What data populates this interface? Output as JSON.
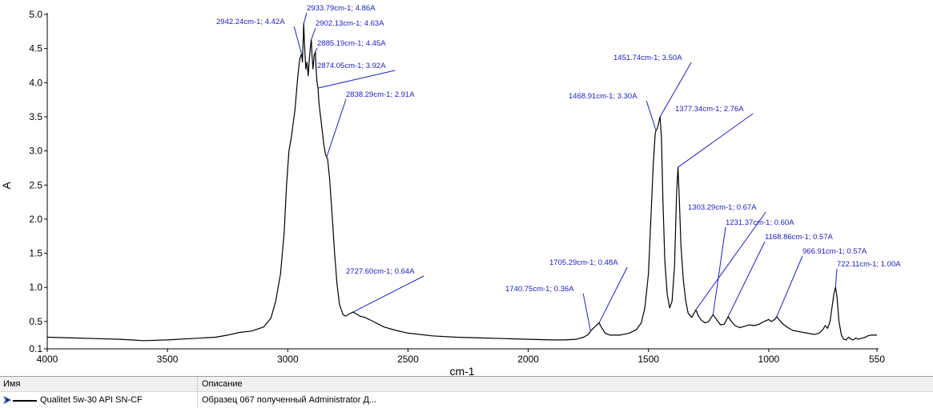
{
  "chart_data": {
    "type": "line",
    "xlabel": "cm-1",
    "ylabel": "A",
    "xlim": [
      4000,
      550
    ],
    "ylim": [
      0.1,
      5.0
    ],
    "x_reversed": true,
    "grid": false,
    "xticks": [
      4000,
      3500,
      3000,
      2500,
      2000,
      1500,
      1000,
      550
    ],
    "xtick_labels": [
      "4000",
      "3500",
      "3000",
      "2500",
      "2000",
      "1500",
      "1000",
      "550"
    ],
    "yticks": [
      0.1,
      0.5,
      1.0,
      1.5,
      2.0,
      2.5,
      3.0,
      3.5,
      4.0,
      4.5,
      5.0
    ],
    "ytick_labels": [
      "0.1",
      "0.5",
      "1.0",
      "1.5",
      "2.0",
      "2.5",
      "3.0",
      "3.5",
      "4.0",
      "4.5",
      "5.0"
    ],
    "series": [
      {
        "name": "Qualitet 5w-30 API SN-CF",
        "color": "#000000",
        "points": [
          [
            4000,
            0.27
          ],
          [
            3900,
            0.26
          ],
          [
            3800,
            0.25
          ],
          [
            3700,
            0.24
          ],
          [
            3650,
            0.23
          ],
          [
            3600,
            0.22
          ],
          [
            3500,
            0.23
          ],
          [
            3400,
            0.25
          ],
          [
            3300,
            0.27
          ],
          [
            3250,
            0.3
          ],
          [
            3200,
            0.34
          ],
          [
            3150,
            0.36
          ],
          [
            3100,
            0.42
          ],
          [
            3070,
            0.55
          ],
          [
            3050,
            0.8
          ],
          [
            3030,
            1.2
          ],
          [
            3015,
            1.8
          ],
          [
            3005,
            2.5
          ],
          [
            2995,
            3.0
          ],
          [
            2985,
            3.2
          ],
          [
            2970,
            3.6
          ],
          [
            2958,
            4.1
          ],
          [
            2950,
            4.35
          ],
          [
            2945,
            4.4
          ],
          [
            2942.24,
            4.42
          ],
          [
            2939,
            4.3
          ],
          [
            2936,
            4.6
          ],
          [
            2933.79,
            4.86
          ],
          [
            2930,
            4.55
          ],
          [
            2925,
            4.2
          ],
          [
            2920,
            4.3
          ],
          [
            2915,
            4.1
          ],
          [
            2910,
            4.35
          ],
          [
            2905,
            4.55
          ],
          [
            2902.13,
            4.63
          ],
          [
            2899,
            4.4
          ],
          [
            2895,
            4.2
          ],
          [
            2890,
            4.4
          ],
          [
            2885.19,
            4.45
          ],
          [
            2882,
            4.2
          ],
          [
            2878,
            4.0
          ],
          [
            2874.05,
            3.92
          ],
          [
            2870,
            3.7
          ],
          [
            2860,
            3.4
          ],
          [
            2850,
            3.1
          ],
          [
            2843,
            2.95
          ],
          [
            2838.29,
            2.91
          ],
          [
            2834,
            2.88
          ],
          [
            2826,
            2.6
          ],
          [
            2815,
            2.05
          ],
          [
            2805,
            1.5
          ],
          [
            2795,
            1.05
          ],
          [
            2785,
            0.75
          ],
          [
            2770,
            0.6
          ],
          [
            2760,
            0.58
          ],
          [
            2745,
            0.61
          ],
          [
            2727.6,
            0.64
          ],
          [
            2715,
            0.61
          ],
          [
            2700,
            0.58
          ],
          [
            2680,
            0.56
          ],
          [
            2650,
            0.51
          ],
          [
            2600,
            0.42
          ],
          [
            2550,
            0.37
          ],
          [
            2500,
            0.33
          ],
          [
            2400,
            0.29
          ],
          [
            2300,
            0.27
          ],
          [
            2200,
            0.26
          ],
          [
            2100,
            0.25
          ],
          [
            2000,
            0.24
          ],
          [
            1900,
            0.23
          ],
          [
            1850,
            0.23
          ],
          [
            1800,
            0.24
          ],
          [
            1770,
            0.27
          ],
          [
            1750,
            0.31
          ],
          [
            1740.75,
            0.36
          ],
          [
            1730,
            0.4
          ],
          [
            1718,
            0.44
          ],
          [
            1705.29,
            0.48
          ],
          [
            1695,
            0.41
          ],
          [
            1680,
            0.33
          ],
          [
            1660,
            0.3
          ],
          [
            1620,
            0.3
          ],
          [
            1580,
            0.33
          ],
          [
            1550,
            0.38
          ],
          [
            1530,
            0.48
          ],
          [
            1515,
            0.7
          ],
          [
            1500,
            1.2
          ],
          [
            1490,
            2.0
          ],
          [
            1480,
            2.8
          ],
          [
            1472,
            3.25
          ],
          [
            1468.91,
            3.3
          ],
          [
            1464,
            3.32
          ],
          [
            1458,
            3.4
          ],
          [
            1451.74,
            3.5
          ],
          [
            1446,
            3.2
          ],
          [
            1440,
            2.3
          ],
          [
            1432,
            1.4
          ],
          [
            1422,
            0.9
          ],
          [
            1412,
            0.7
          ],
          [
            1402,
            0.8
          ],
          [
            1392,
            1.3
          ],
          [
            1383,
            2.4
          ],
          [
            1377.34,
            2.76
          ],
          [
            1372,
            2.3
          ],
          [
            1365,
            1.6
          ],
          [
            1355,
            1.1
          ],
          [
            1345,
            0.8
          ],
          [
            1335,
            0.62
          ],
          [
            1320,
            0.56
          ],
          [
            1303.29,
            0.67
          ],
          [
            1292,
            0.58
          ],
          [
            1280,
            0.52
          ],
          [
            1265,
            0.48
          ],
          [
            1250,
            0.5
          ],
          [
            1231.37,
            0.6
          ],
          [
            1215,
            0.52
          ],
          [
            1200,
            0.45
          ],
          [
            1185,
            0.46
          ],
          [
            1168.86,
            0.57
          ],
          [
            1155,
            0.5
          ],
          [
            1140,
            0.44
          ],
          [
            1120,
            0.41
          ],
          [
            1100,
            0.43
          ],
          [
            1080,
            0.45
          ],
          [
            1060,
            0.44
          ],
          [
            1040,
            0.46
          ],
          [
            1020,
            0.5
          ],
          [
            1000,
            0.53
          ],
          [
            990,
            0.5
          ],
          [
            975,
            0.53
          ],
          [
            966.91,
            0.57
          ],
          [
            955,
            0.52
          ],
          [
            940,
            0.46
          ],
          [
            920,
            0.41
          ],
          [
            900,
            0.37
          ],
          [
            870,
            0.35
          ],
          [
            840,
            0.33
          ],
          [
            810,
            0.31
          ],
          [
            790,
            0.33
          ],
          [
            775,
            0.38
          ],
          [
            765,
            0.44
          ],
          [
            755,
            0.4
          ],
          [
            745,
            0.5
          ],
          [
            735,
            0.75
          ],
          [
            728,
            0.92
          ],
          [
            722.11,
            1.0
          ],
          [
            716,
            0.85
          ],
          [
            708,
            0.5
          ],
          [
            698,
            0.3
          ],
          [
            688,
            0.24
          ],
          [
            678,
            0.23
          ],
          [
            668,
            0.27
          ],
          [
            658,
            0.24
          ],
          [
            648,
            0.23
          ],
          [
            638,
            0.26
          ],
          [
            628,
            0.24
          ],
          [
            618,
            0.25
          ],
          [
            608,
            0.26
          ],
          [
            598,
            0.27
          ],
          [
            588,
            0.29
          ],
          [
            575,
            0.3
          ],
          [
            562,
            0.3
          ],
          [
            550,
            0.3
          ]
        ]
      }
    ],
    "annotations": [
      {
        "x": 2942.24,
        "y": 4.42,
        "text": "2942.24cm-1; 4.42A"
      },
      {
        "x": 2933.79,
        "y": 4.86,
        "text": "2933.79cm-1; 4.86A"
      },
      {
        "x": 2902.13,
        "y": 4.63,
        "text": "2902.13cm-1; 4.63A"
      },
      {
        "x": 2885.19,
        "y": 4.45,
        "text": "2885.19cm-1; 4.45A"
      },
      {
        "x": 2874.05,
        "y": 3.92,
        "text": "2874.05cm-1; 3.92A"
      },
      {
        "x": 2838.29,
        "y": 2.91,
        "text": "2838.29cm-1; 2.91A"
      },
      {
        "x": 2727.6,
        "y": 0.64,
        "text": "2727.60cm-1; 0.64A"
      },
      {
        "x": 1740.75,
        "y": 0.36,
        "text": "1740.75cm-1; 0.36A"
      },
      {
        "x": 1705.29,
        "y": 0.48,
        "text": "1705.29cm-1; 0.48A"
      },
      {
        "x": 1468.91,
        "y": 3.3,
        "text": "1468.91cm-1; 3.30A"
      },
      {
        "x": 1451.74,
        "y": 3.5,
        "text": "1451.74cm-1; 3.50A"
      },
      {
        "x": 1377.34,
        "y": 2.76,
        "text": "1377.34cm-1; 2.76A"
      },
      {
        "x": 1303.29,
        "y": 0.67,
        "text": "1303.29cm-1; 0.67A"
      },
      {
        "x": 1231.37,
        "y": 0.6,
        "text": "1231.37cm-1; 0.60A"
      },
      {
        "x": 1168.86,
        "y": 0.57,
        "text": "1168.86cm-1; 0.57A"
      },
      {
        "x": 966.91,
        "y": 0.57,
        "text": "966.91cm-1; 0.57A"
      },
      {
        "x": 722.11,
        "y": 1.0,
        "text": "722.11cm-1; 1.00A"
      }
    ],
    "annotation_color": "#2020c0"
  },
  "legend": {
    "col_name": "Имя",
    "col_desc": "Описание",
    "rows": [
      {
        "name": "Qualitet 5w-30 API SN-CF",
        "desc": "Образец 067 полученный Administrator Д..."
      }
    ],
    "arrow_color": "#1a3c8c"
  }
}
